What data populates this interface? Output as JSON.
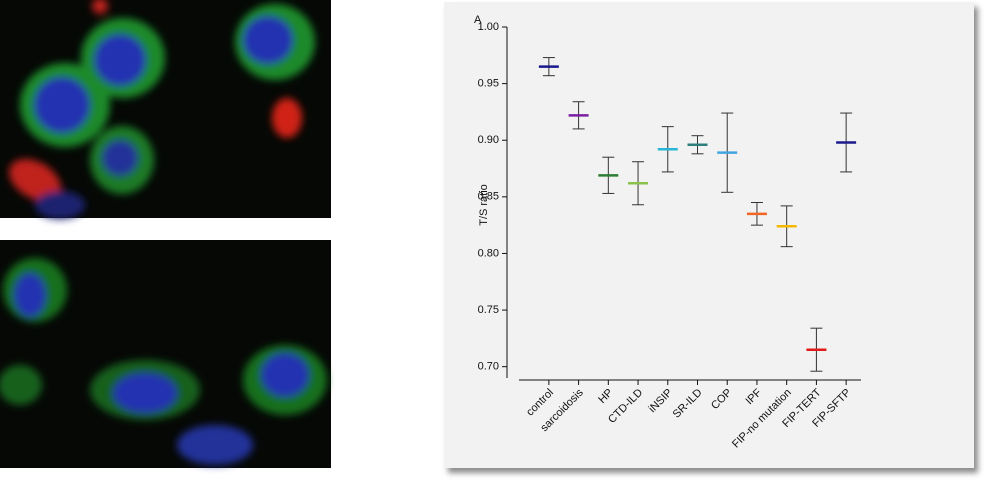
{
  "chart_data": {
    "type": "errorbar",
    "annotation": "A",
    "y_label": "T/S ratio",
    "categories": [
      "control",
      "sarcoidosis",
      "HP",
      "CTD-ILD",
      "iNSIP",
      "SR-ILD",
      "COP",
      "IPF",
      "FIP-no mutation",
      "FIP-TERT",
      "FIP-SFTP"
    ],
    "values": [
      0.965,
      0.922,
      0.869,
      0.862,
      0.892,
      0.896,
      0.889,
      0.835,
      0.824,
      0.715,
      0.898
    ],
    "errors": [
      0.008,
      0.012,
      0.016,
      0.019,
      0.02,
      0.008,
      0.035,
      0.01,
      0.018,
      0.019,
      0.026
    ],
    "colors": [
      "#1a1a8c",
      "#7b1fa2",
      "#2e7d32",
      "#8bc34a",
      "#29b6d6",
      "#2e7d7d",
      "#42a5e0",
      "#f26522",
      "#f5b800",
      "#e11b1b",
      "#1a1a8c"
    ],
    "ylim": [
      0.69,
      1.0
    ],
    "yticks": [
      {
        "value": 1.0,
        "label": "1.00"
      },
      0.95,
      {
        "value": 0.9,
        "label": "0.90"
      },
      0.85,
      {
        "value": 0.8,
        "label": "0.80"
      },
      0.75,
      {
        "value": 0.7,
        "label": "0.70"
      }
    ]
  }
}
